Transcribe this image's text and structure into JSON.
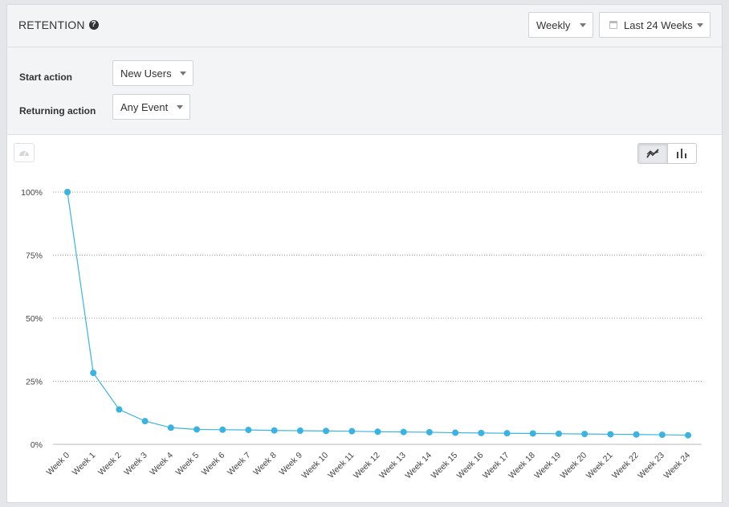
{
  "header": {
    "title": "RETENTION",
    "help_icon": "question-circle-icon",
    "interval_select": "Weekly",
    "range_select": "Last 24 Weeks",
    "range_icon": "calendar-icon"
  },
  "filters": {
    "start_action_label": "Start action",
    "start_action_value": "New Users",
    "returning_action_label": "Returning action",
    "returning_action_value": "Any Event"
  },
  "toolbar": {
    "left_icon": "dashboard-icon",
    "line_view_icon": "line-chart-icon",
    "bar_view_icon": "bar-chart-icon",
    "active_view": "line"
  },
  "chart_data": {
    "type": "line",
    "title": "",
    "xlabel": "",
    "ylabel": "",
    "ylim": [
      0,
      100
    ],
    "yticks": [
      "0%",
      "25%",
      "50%",
      "75%",
      "100%"
    ],
    "grid": true,
    "color": "#3bb3e2",
    "categories": [
      "Week 0",
      "Week 1",
      "Week 2",
      "Week 3",
      "Week 4",
      "Week 5",
      "Week 6",
      "Week 7",
      "Week 8",
      "Week 9",
      "Week 10",
      "Week 11",
      "Week 12",
      "Week 13",
      "Week 14",
      "Week 15",
      "Week 16",
      "Week 17",
      "Week 18",
      "Week 19",
      "Week 20",
      "Week 21",
      "Week 22",
      "Week 23",
      "Week 24"
    ],
    "values": [
      100,
      28.3,
      13.8,
      9.2,
      6.6,
      5.9,
      5.8,
      5.7,
      5.5,
      5.4,
      5.3,
      5.2,
      5.0,
      4.9,
      4.8,
      4.6,
      4.5,
      4.4,
      4.3,
      4.2,
      4.1,
      4.0,
      3.9,
      3.8,
      3.6
    ]
  }
}
